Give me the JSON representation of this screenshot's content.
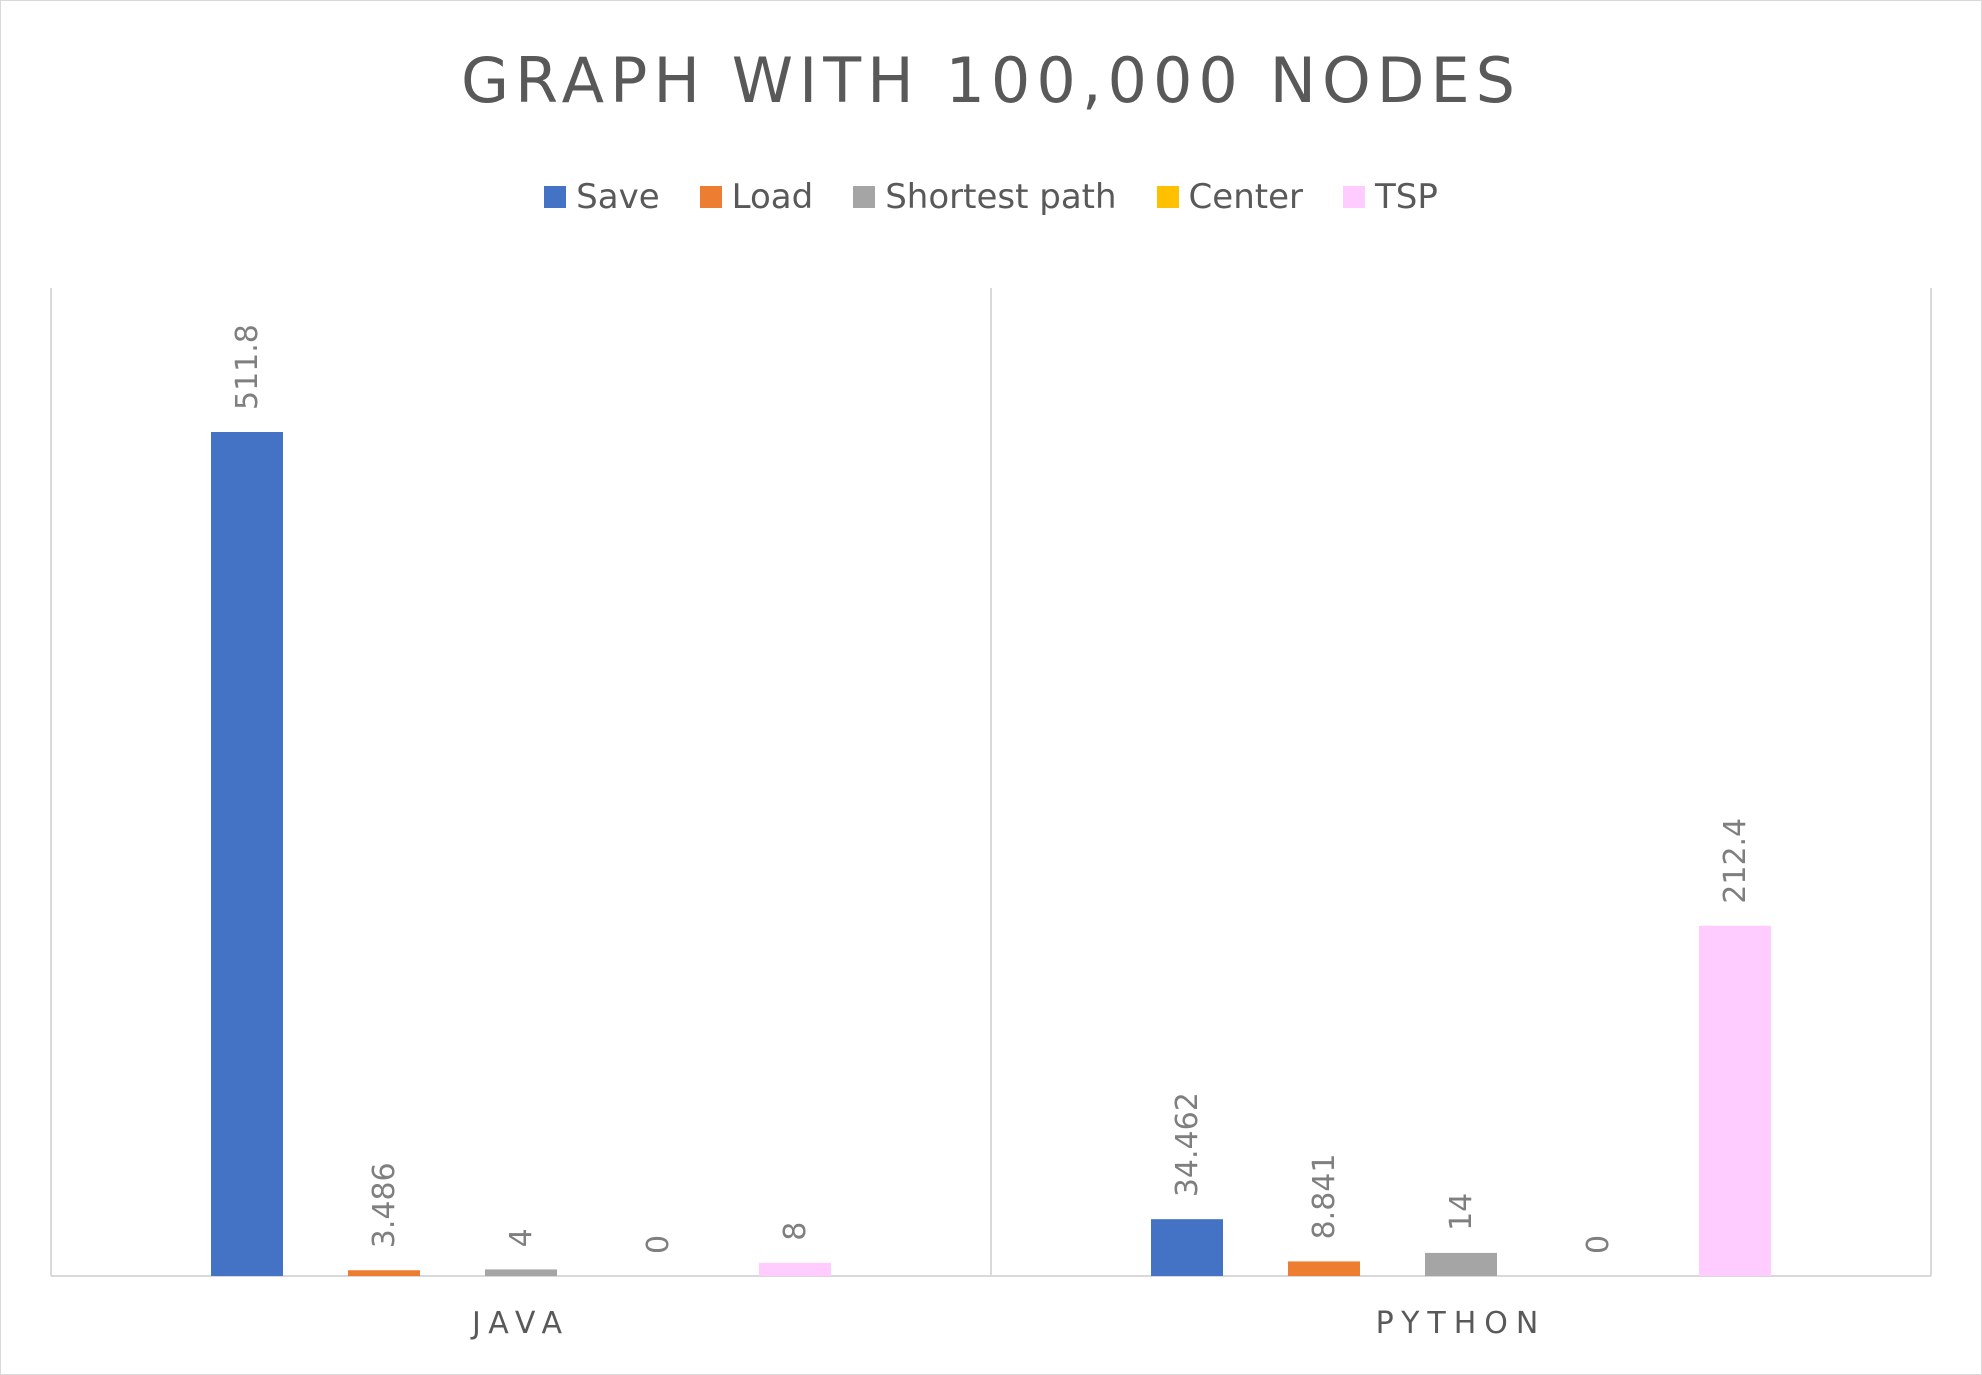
{
  "chart_data": {
    "type": "bar",
    "title": "GRAPH WITH 100,000 NODES",
    "categories": [
      "JAVA",
      "PYTHON"
    ],
    "series": [
      {
        "name": "Save",
        "color": "#4472C4",
        "values": [
          511.8,
          34.462
        ],
        "labels": [
          "511.8",
          "34.462"
        ]
      },
      {
        "name": "Load",
        "color": "#ED7D31",
        "values": [
          3.486,
          8.841
        ],
        "labels": [
          "3.486",
          "8.841"
        ]
      },
      {
        "name": "Shortest path",
        "color": "#A5A5A5",
        "values": [
          4,
          14
        ],
        "labels": [
          "4",
          "14"
        ]
      },
      {
        "name": "Center",
        "color": "#FFC000",
        "values": [
          0,
          0
        ],
        "labels": [
          "0",
          "0"
        ]
      },
      {
        "name": "TSP",
        "color": "#FFCCFF",
        "values": [
          8,
          212.4
        ],
        "labels": [
          "8",
          "212.4"
        ]
      }
    ],
    "ylim": [
      0,
      600
    ],
    "legend_position": "top",
    "grid": false,
    "xlabel": "",
    "ylabel": ""
  }
}
